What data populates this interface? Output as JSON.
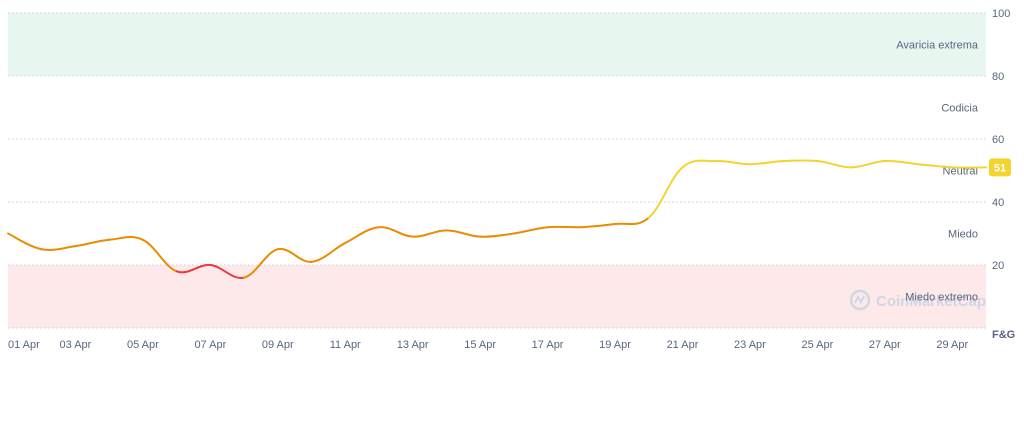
{
  "chart_data": {
    "type": "line",
    "x": [
      "01 Apr",
      "02 Apr",
      "03 Apr",
      "04 Apr",
      "05 Apr",
      "06 Apr",
      "07 Apr",
      "08 Apr",
      "09 Apr",
      "10 Apr",
      "11 Apr",
      "12 Apr",
      "13 Apr",
      "14 Apr",
      "15 Apr",
      "16 Apr",
      "17 Apr",
      "18 Apr",
      "19 Apr",
      "20 Apr",
      "21 Apr",
      "22 Apr",
      "23 Apr",
      "24 Apr",
      "25 Apr",
      "26 Apr",
      "27 Apr",
      "28 Apr",
      "29 Apr",
      "30 Apr"
    ],
    "x_tick_labels": [
      "01 Apr",
      "03 Apr",
      "05 Apr",
      "07 Apr",
      "09 Apr",
      "11 Apr",
      "13 Apr",
      "15 Apr",
      "17 Apr",
      "19 Apr",
      "21 Apr",
      "23 Apr",
      "25 Apr",
      "27 Apr",
      "29 Apr"
    ],
    "values": [
      30,
      25,
      26,
      28,
      28,
      18,
      20,
      16,
      25,
      21,
      27,
      32,
      29,
      31,
      29,
      30,
      32,
      32,
      33,
      35,
      51,
      53,
      52,
      53,
      53,
      51,
      53,
      52,
      51,
      51
    ],
    "ylim": [
      0,
      100
    ],
    "y_ticks": [
      20,
      40,
      60,
      80,
      100
    ],
    "y_axis_side": "right",
    "y_unit_label": "F&G",
    "grid": true,
    "current_value": "51",
    "zones": [
      {
        "label": "Avaricia extrema",
        "from": 80,
        "to": 100,
        "color": "#e7f7f0"
      },
      {
        "label": "Codicia",
        "from": 60,
        "to": 80,
        "color": "#ffffff"
      },
      {
        "label": "Neutral",
        "from": 40,
        "to": 60,
        "color": "#ffffff"
      },
      {
        "label": "Miedo",
        "from": 20,
        "to": 40,
        "color": "#ffffff"
      },
      {
        "label": "Miedo extremo",
        "from": 0,
        "to": 20,
        "color": "#fde9e9"
      }
    ],
    "colors": {
      "extreme_fear": "#ea3943",
      "fear": "#ea8c00",
      "neutral": "#f3d42f",
      "badge": "#f3d42f",
      "grid": "#c9ced6",
      "text": "#58667e"
    },
    "watermark": "CoinMarketCap"
  }
}
